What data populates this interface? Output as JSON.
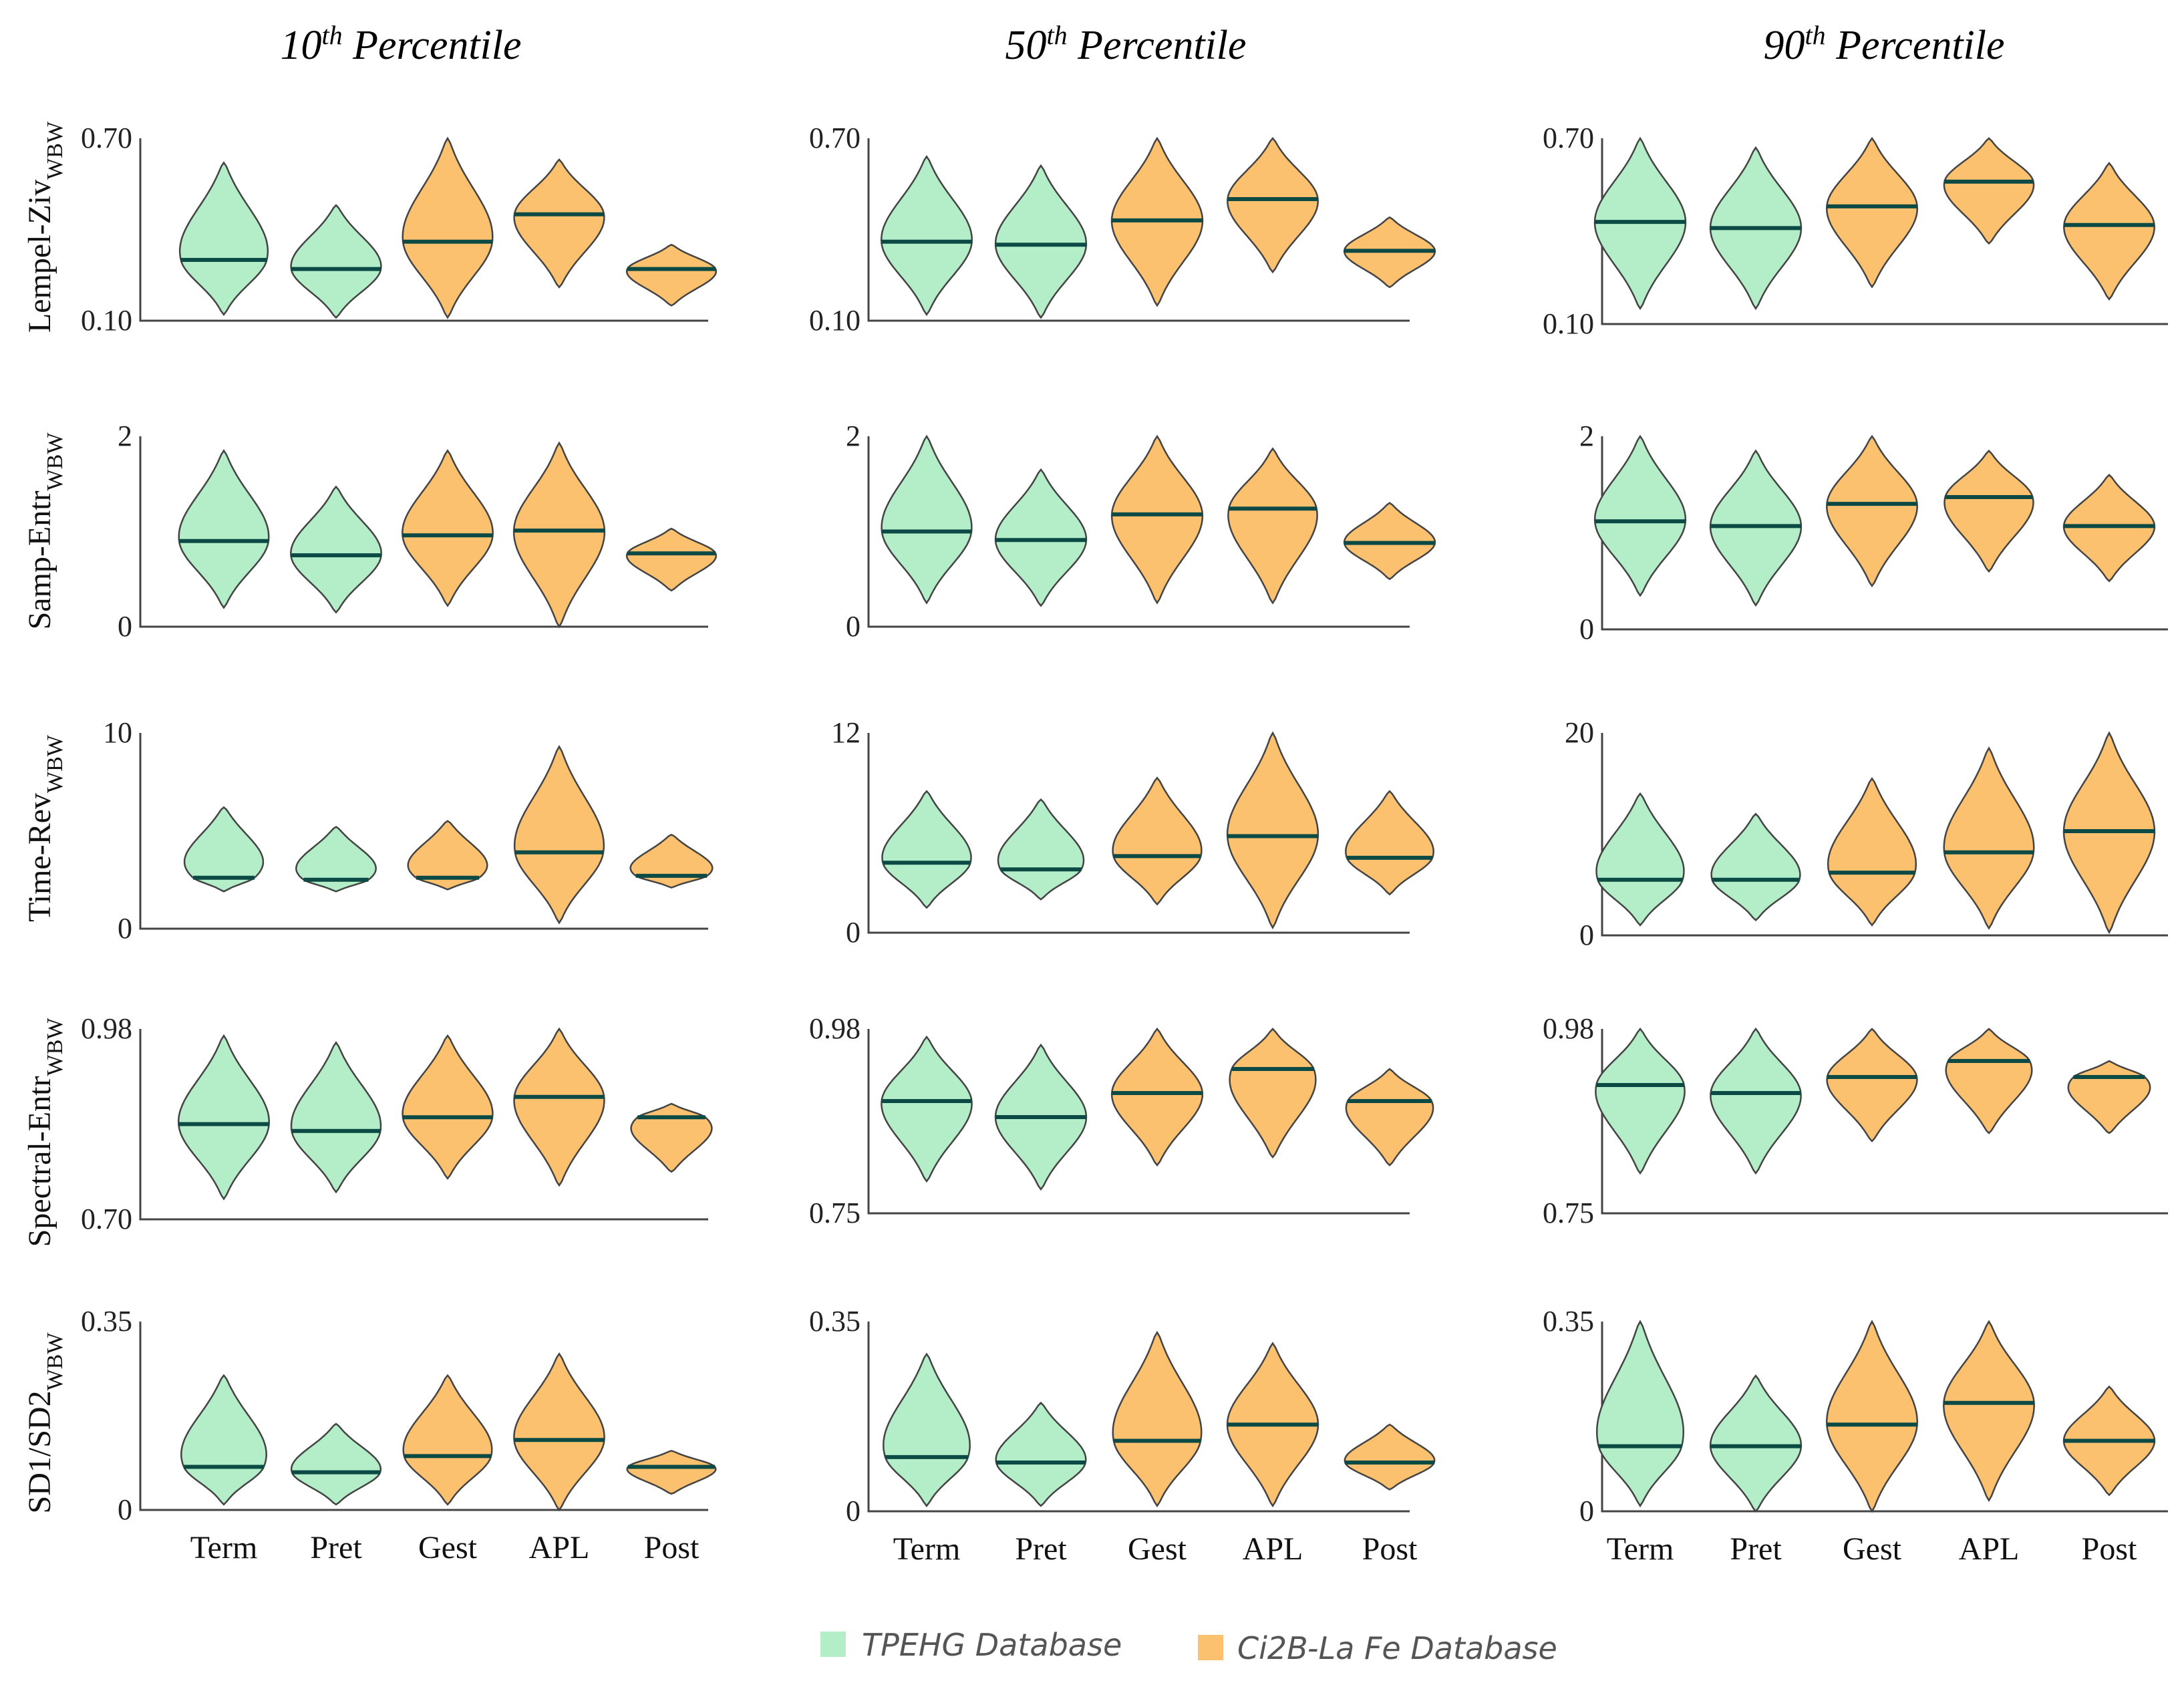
{
  "columns": [
    {
      "num": "10",
      "sup": "th",
      "word": "Percentile"
    },
    {
      "num": "50",
      "sup": "th",
      "word": "Percentile"
    },
    {
      "num": "90",
      "sup": "th",
      "word": "Percentile"
    }
  ],
  "rows": [
    {
      "label": "Lempel-Ziv",
      "sub": "WBW"
    },
    {
      "label": "Samp-Entr",
      "sub": "WBW"
    },
    {
      "label": "Time-Rev",
      "sub": "WBW"
    },
    {
      "label": "Spectral-Entr",
      "sub": "WBW"
    },
    {
      "label": "SD1/SD2",
      "sub": "WBW"
    }
  ],
  "categories": [
    "Term",
    "Pret",
    "Gest",
    "APL",
    "Post"
  ],
  "legend": [
    {
      "label": "TPEHG Database",
      "color": "#b3eec8"
    },
    {
      "label": "Ci2B-La Fe Database",
      "color": "#fbc16f"
    }
  ],
  "colors": {
    "tpehg": "#b3eec8",
    "ci2b": "#fbc16f",
    "median": "#0c4a46"
  },
  "chart_data": [
    {
      "type": "violin",
      "row": "Lempel-Ziv",
      "column": "10th Percentile",
      "ylim": [
        0.1,
        0.7
      ],
      "yticks": [
        "0.70",
        "0.10"
      ],
      "categories": [
        "Term",
        "Pret",
        "Gest",
        "APL",
        "Post"
      ],
      "database": [
        "TPEHG",
        "TPEHG",
        "Ci2B-La Fe",
        "Ci2B-La Fe",
        "Ci2B-La Fe"
      ],
      "median": [
        0.3,
        0.27,
        0.36,
        0.45,
        0.27
      ],
      "min": [
        0.12,
        0.11,
        0.11,
        0.21,
        0.15
      ],
      "max": [
        0.62,
        0.48,
        0.7,
        0.63,
        0.35
      ]
    },
    {
      "type": "violin",
      "row": "Lempel-Ziv",
      "column": "50th Percentile",
      "ylim": [
        0.1,
        0.7
      ],
      "yticks": [
        "0.70",
        "0.10"
      ],
      "categories": [
        "Term",
        "Pret",
        "Gest",
        "APL",
        "Post"
      ],
      "database": [
        "TPEHG",
        "TPEHG",
        "Ci2B-La Fe",
        "Ci2B-La Fe",
        "Ci2B-La Fe"
      ],
      "median": [
        0.36,
        0.35,
        0.43,
        0.5,
        0.33
      ],
      "min": [
        0.12,
        0.11,
        0.15,
        0.26,
        0.21
      ],
      "max": [
        0.64,
        0.61,
        0.7,
        0.7,
        0.44
      ]
    },
    {
      "type": "violin",
      "row": "Lempel-Ziv",
      "column": "90th Percentile",
      "ylim": [
        0.1,
        0.7
      ],
      "yticks": [
        "0.70",
        "0.10"
      ],
      "categories": [
        "Term",
        "Pret",
        "Gest",
        "APL",
        "Post"
      ],
      "database": [
        "TPEHG",
        "TPEHG",
        "Ci2B-La Fe",
        "Ci2B-La Fe",
        "Ci2B-La Fe"
      ],
      "median": [
        0.43,
        0.41,
        0.48,
        0.56,
        0.42
      ],
      "min": [
        0.15,
        0.15,
        0.22,
        0.36,
        0.18
      ],
      "max": [
        0.7,
        0.67,
        0.7,
        0.7,
        0.62
      ]
    },
    {
      "type": "violin",
      "row": "Samp-Entr",
      "column": "10th Percentile",
      "ylim": [
        0,
        2
      ],
      "yticks": [
        "2",
        "0"
      ],
      "categories": [
        "Term",
        "Pret",
        "Gest",
        "APL",
        "Post"
      ],
      "database": [
        "TPEHG",
        "TPEHG",
        "Ci2B-La Fe",
        "Ci2B-La Fe",
        "Ci2B-La Fe"
      ],
      "median": [
        0.9,
        0.75,
        0.96,
        1.01,
        0.77
      ],
      "min": [
        0.2,
        0.15,
        0.22,
        0.0,
        0.38
      ],
      "max": [
        1.85,
        1.47,
        1.85,
        1.93,
        1.03
      ]
    },
    {
      "type": "violin",
      "row": "Samp-Entr",
      "column": "50th Percentile",
      "ylim": [
        0,
        2
      ],
      "yticks": [
        "2",
        "0"
      ],
      "categories": [
        "Term",
        "Pret",
        "Gest",
        "APL",
        "Post"
      ],
      "database": [
        "TPEHG",
        "TPEHG",
        "Ci2B-La Fe",
        "Ci2B-La Fe",
        "Ci2B-La Fe"
      ],
      "median": [
        1.0,
        0.91,
        1.18,
        1.24,
        0.88
      ],
      "min": [
        0.25,
        0.22,
        0.25,
        0.25,
        0.5
      ],
      "max": [
        2.0,
        1.65,
        2.0,
        1.87,
        1.3
      ]
    },
    {
      "type": "violin",
      "row": "Samp-Entr",
      "column": "90th Percentile",
      "ylim": [
        0,
        2
      ],
      "yticks": [
        "2",
        "0"
      ],
      "categories": [
        "Term",
        "Pret",
        "Gest",
        "APL",
        "Post"
      ],
      "database": [
        "TPEHG",
        "TPEHG",
        "Ci2B-La Fe",
        "Ci2B-La Fe",
        "Ci2B-La Fe"
      ],
      "median": [
        1.12,
        1.07,
        1.3,
        1.37,
        1.07
      ],
      "min": [
        0.35,
        0.25,
        0.45,
        0.6,
        0.5
      ],
      "max": [
        2.0,
        1.85,
        2.0,
        1.85,
        1.6
      ]
    },
    {
      "type": "violin",
      "row": "Time-Rev",
      "column": "10th Percentile",
      "ylim": [
        0,
        10
      ],
      "yticks": [
        "10",
        "0"
      ],
      "categories": [
        "Term",
        "Pret",
        "Gest",
        "APL",
        "Post"
      ],
      "database": [
        "TPEHG",
        "TPEHG",
        "Ci2B-La Fe",
        "Ci2B-La Fe",
        "Ci2B-La Fe"
      ],
      "median": [
        2.6,
        2.5,
        2.6,
        3.9,
        2.7
      ],
      "min": [
        1.9,
        1.9,
        2.0,
        0.3,
        2.1
      ],
      "max": [
        6.2,
        5.2,
        5.5,
        9.3,
        4.8
      ]
    },
    {
      "type": "violin",
      "row": "Time-Rev",
      "column": "50th Percentile",
      "ylim": [
        0,
        12
      ],
      "yticks": [
        "12",
        "0"
      ],
      "categories": [
        "Term",
        "Pret",
        "Gest",
        "APL",
        "Post"
      ],
      "database": [
        "TPEHG",
        "TPEHG",
        "Ci2B-La Fe",
        "Ci2B-La Fe",
        "Ci2B-La Fe"
      ],
      "median": [
        4.2,
        3.8,
        4.6,
        5.8,
        4.5
      ],
      "min": [
        1.5,
        2.0,
        1.7,
        0.3,
        2.3
      ],
      "max": [
        8.5,
        8.0,
        9.3,
        12.0,
        8.5
      ]
    },
    {
      "type": "violin",
      "row": "Time-Rev",
      "column": "90th Percentile",
      "ylim": [
        0,
        20
      ],
      "yticks": [
        "20",
        "0"
      ],
      "categories": [
        "Term",
        "Pret",
        "Gest",
        "APL",
        "Post"
      ],
      "database": [
        "TPEHG",
        "TPEHG",
        "Ci2B-La Fe",
        "Ci2B-La Fe",
        "Ci2B-La Fe"
      ],
      "median": [
        5.5,
        5.5,
        6.2,
        8.2,
        10.3
      ],
      "min": [
        1.0,
        1.5,
        1.0,
        0.7,
        0.3
      ],
      "max": [
        14.0,
        12.0,
        15.5,
        18.5,
        20.0
      ]
    },
    {
      "type": "violin",
      "row": "Spectral-Entr",
      "column": "10th Percentile",
      "ylim": [
        0.7,
        0.98
      ],
      "yticks": [
        "0.98",
        "0.70"
      ],
      "categories": [
        "Term",
        "Pret",
        "Gest",
        "APL",
        "Post"
      ],
      "database": [
        "TPEHG",
        "TPEHG",
        "Ci2B-La Fe",
        "Ci2B-La Fe",
        "Ci2B-La Fe"
      ],
      "median": [
        0.84,
        0.83,
        0.85,
        0.88,
        0.85
      ],
      "min": [
        0.73,
        0.74,
        0.76,
        0.75,
        0.77
      ],
      "max": [
        0.97,
        0.96,
        0.97,
        0.98,
        0.87
      ]
    },
    {
      "type": "violin",
      "row": "Spectral-Entr",
      "column": "50th Percentile",
      "ylim": [
        0.75,
        0.98
      ],
      "yticks": [
        "0.98",
        "0.75"
      ],
      "categories": [
        "Term",
        "Pret",
        "Gest",
        "APL",
        "Post"
      ],
      "database": [
        "TPEHG",
        "TPEHG",
        "Ci2B-La Fe",
        "Ci2B-La Fe",
        "Ci2B-La Fe"
      ],
      "median": [
        0.89,
        0.87,
        0.9,
        0.93,
        0.89
      ],
      "min": [
        0.79,
        0.78,
        0.81,
        0.82,
        0.81
      ],
      "max": [
        0.97,
        0.96,
        0.98,
        0.98,
        0.93
      ]
    },
    {
      "type": "violin",
      "row": "Spectral-Entr",
      "column": "90th Percentile",
      "ylim": [
        0.75,
        0.98
      ],
      "yticks": [
        "0.98",
        "0.75"
      ],
      "categories": [
        "Term",
        "Pret",
        "Gest",
        "APL",
        "Post"
      ],
      "database": [
        "TPEHG",
        "TPEHG",
        "Ci2B-La Fe",
        "Ci2B-La Fe",
        "Ci2B-La Fe"
      ],
      "median": [
        0.91,
        0.9,
        0.92,
        0.94,
        0.92
      ],
      "min": [
        0.8,
        0.8,
        0.84,
        0.85,
        0.85
      ],
      "max": [
        0.98,
        0.98,
        0.98,
        0.98,
        0.94
      ]
    },
    {
      "type": "violin",
      "row": "SD1/SD2",
      "column": "10th Percentile",
      "ylim": [
        0,
        0.35
      ],
      "yticks": [
        "0.35",
        "0"
      ],
      "categories": [
        "Term",
        "Pret",
        "Gest",
        "APL",
        "Post"
      ],
      "database": [
        "TPEHG",
        "TPEHG",
        "Ci2B-La Fe",
        "Ci2B-La Fe",
        "Ci2B-La Fe"
      ],
      "median": [
        0.08,
        0.07,
        0.1,
        0.13,
        0.08
      ],
      "min": [
        0.01,
        0.01,
        0.01,
        0.0,
        0.03
      ],
      "max": [
        0.25,
        0.16,
        0.25,
        0.29,
        0.11
      ]
    },
    {
      "type": "violin",
      "row": "SD1/SD2",
      "column": "50th Percentile",
      "ylim": [
        0,
        0.35
      ],
      "yticks": [
        "0.35",
        "0"
      ],
      "categories": [
        "Term",
        "Pret",
        "Gest",
        "APL",
        "Post"
      ],
      "database": [
        "TPEHG",
        "TPEHG",
        "Ci2B-La Fe",
        "Ci2B-La Fe",
        "Ci2B-La Fe"
      ],
      "median": [
        0.1,
        0.09,
        0.13,
        0.16,
        0.09
      ],
      "min": [
        0.01,
        0.01,
        0.01,
        0.01,
        0.04
      ],
      "max": [
        0.29,
        0.2,
        0.33,
        0.31,
        0.16
      ]
    },
    {
      "type": "violin",
      "row": "SD1/SD2",
      "column": "90th Percentile",
      "ylim": [
        0,
        0.35
      ],
      "yticks": [
        "0.35",
        "0"
      ],
      "categories": [
        "Term",
        "Pret",
        "Gest",
        "APL",
        "Post"
      ],
      "database": [
        "TPEHG",
        "TPEHG",
        "Ci2B-La Fe",
        "Ci2B-La Fe",
        "Ci2B-La Fe"
      ],
      "median": [
        0.12,
        0.12,
        0.16,
        0.2,
        0.13
      ],
      "min": [
        0.01,
        0.0,
        0.0,
        0.02,
        0.03
      ],
      "max": [
        0.35,
        0.25,
        0.35,
        0.35,
        0.23
      ]
    }
  ]
}
